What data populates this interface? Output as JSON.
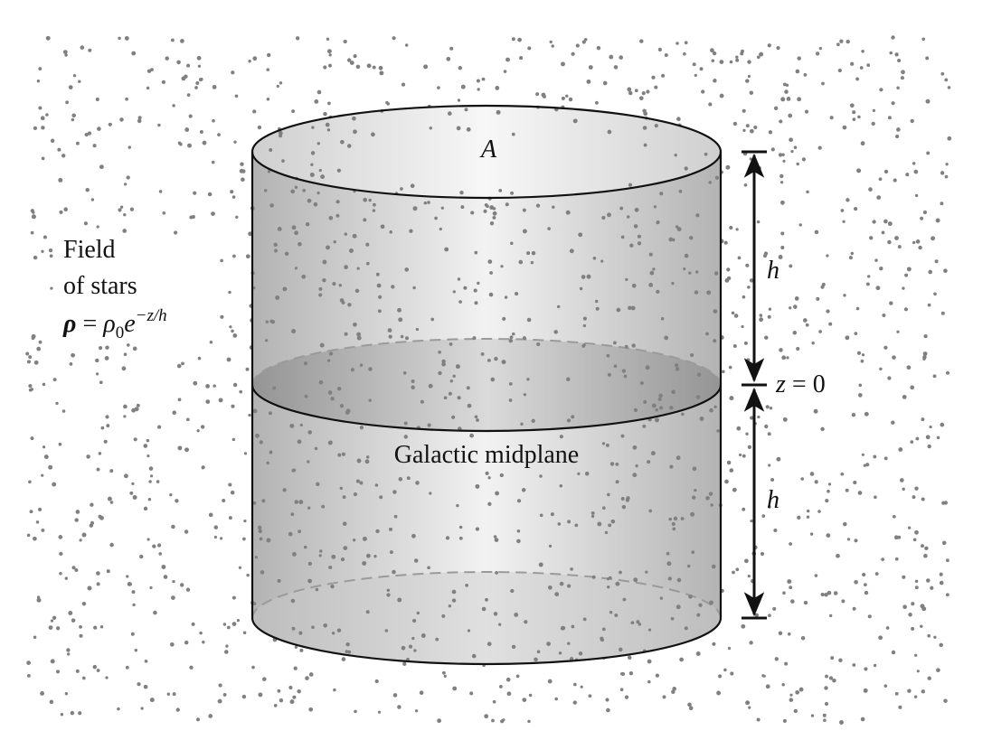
{
  "labels": {
    "area": "A",
    "height_upper": "h",
    "height_lower": "h",
    "z_zero_var": "z",
    "z_zero_eq": " = 0",
    "midplane": "Galactic midplane",
    "field_line1": "Field",
    "field_line2": "of stars",
    "density": {
      "rho": "ρ",
      "eq": " = ",
      "rho0_base": "ρ",
      "rho0_sub": "0",
      "e": "e",
      "exponent": "−z/h"
    }
  },
  "colors": {
    "star": "#808080",
    "outline": "#111111",
    "dashed": "#9a9a9a",
    "cyl_edge": "#b3b3b3",
    "cyl_center": "#f2f2f2"
  }
}
